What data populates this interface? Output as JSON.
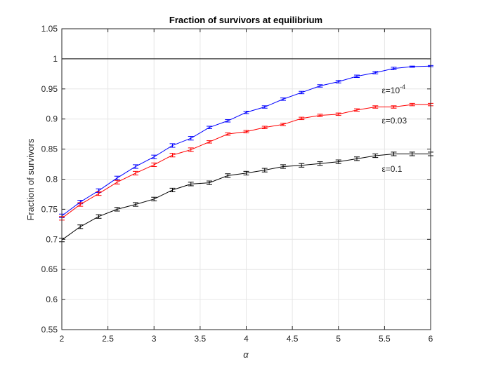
{
  "chart_data": {
    "type": "line",
    "title": "Fraction of survivors at equilibrium",
    "xlabel": "α",
    "ylabel": "Fraction of survivors",
    "xlim": [
      2,
      6
    ],
    "ylim": [
      0.55,
      1.05
    ],
    "xticks": [
      2,
      2.5,
      3,
      3.5,
      4,
      4.5,
      5,
      5.5,
      6
    ],
    "xtick_labels": [
      "2",
      "2.5",
      "3",
      "3.5",
      "4",
      "4.5",
      "5",
      "5.5",
      "6"
    ],
    "yticks": [
      0.55,
      0.6,
      0.65,
      0.7,
      0.75,
      0.8,
      0.85,
      0.9,
      0.95,
      1,
      1.05
    ],
    "ytick_labels": [
      "0.55",
      "0.6",
      "0.65",
      "0.7",
      "0.75",
      "0.8",
      "0.85",
      "0.9",
      "0.95",
      "1",
      "1.05"
    ],
    "grid": true,
    "reference_line": {
      "y": 1,
      "color": "#000000"
    },
    "x": [
      2.0,
      2.2,
      2.4,
      2.6,
      2.8,
      3.0,
      3.2,
      3.4,
      3.6,
      3.8,
      4.0,
      4.2,
      4.4,
      4.6,
      4.8,
      5.0,
      5.2,
      5.4,
      5.6,
      5.8,
      6.0
    ],
    "series": [
      {
        "label_prefix": "ε=10",
        "label_sup": "-4",
        "color": "#0000ff",
        "values": [
          0.739,
          0.762,
          0.781,
          0.802,
          0.821,
          0.837,
          0.856,
          0.868,
          0.886,
          0.897,
          0.911,
          0.92,
          0.933,
          0.944,
          0.955,
          0.962,
          0.971,
          0.977,
          0.984,
          0.987,
          0.988
        ],
        "errors": [
          0.003,
          0.003,
          0.003,
          0.003,
          0.003,
          0.003,
          0.003,
          0.003,
          0.002,
          0.002,
          0.002,
          0.002,
          0.002,
          0.002,
          0.002,
          0.002,
          0.002,
          0.002,
          0.002,
          0.001,
          0.001
        ]
      },
      {
        "label_prefix": "ε=0.03",
        "label_sup": "",
        "color": "#ff0000",
        "values": [
          0.735,
          0.758,
          0.776,
          0.795,
          0.81,
          0.824,
          0.84,
          0.849,
          0.862,
          0.875,
          0.879,
          0.886,
          0.891,
          0.901,
          0.906,
          0.908,
          0.915,
          0.92,
          0.92,
          0.924,
          0.924
        ],
        "errors": [
          0.003,
          0.003,
          0.003,
          0.003,
          0.003,
          0.003,
          0.003,
          0.003,
          0.002,
          0.002,
          0.002,
          0.002,
          0.002,
          0.002,
          0.002,
          0.002,
          0.002,
          0.002,
          0.002,
          0.002,
          0.002
        ]
      },
      {
        "label_prefix": "ε=0.1",
        "label_sup": "",
        "color": "#000000",
        "values": [
          0.699,
          0.721,
          0.738,
          0.75,
          0.758,
          0.767,
          0.782,
          0.792,
          0.794,
          0.806,
          0.81,
          0.815,
          0.821,
          0.823,
          0.826,
          0.829,
          0.834,
          0.839,
          0.842,
          0.842,
          0.842
        ],
        "errors": [
          0.003,
          0.003,
          0.003,
          0.003,
          0.003,
          0.003,
          0.003,
          0.003,
          0.003,
          0.003,
          0.003,
          0.003,
          0.003,
          0.003,
          0.003,
          0.003,
          0.003,
          0.003,
          0.003,
          0.003,
          0.003
        ]
      }
    ]
  }
}
